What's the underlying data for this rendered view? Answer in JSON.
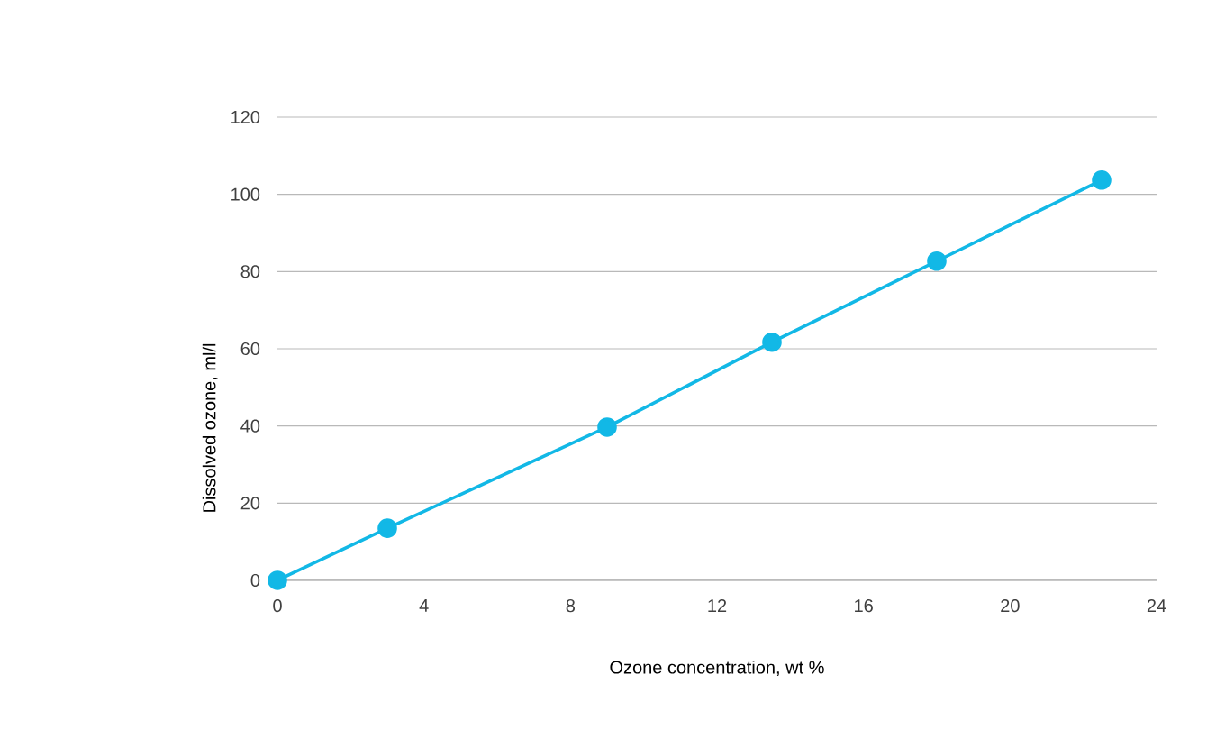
{
  "chart_data": {
    "type": "line",
    "xlabel": "Ozone concentration, wt %",
    "ylabel": "Dissolved ozone, ml/l",
    "x": [
      0,
      3,
      9,
      13.5,
      18,
      22.5
    ],
    "series": [
      {
        "color": "#12b8e6",
        "values": [
          0,
          13.5,
          39.7,
          61.7,
          82.7,
          103.7
        ]
      }
    ],
    "xlim": [
      0,
      24
    ],
    "ylim": [
      0,
      120
    ],
    "xticks": [
      0,
      4,
      8,
      12,
      16,
      20,
      24
    ],
    "yticks": [
      0,
      20,
      40,
      60,
      80,
      100,
      120
    ],
    "grid": "y",
    "marker": "circle",
    "line_style": "solid"
  }
}
